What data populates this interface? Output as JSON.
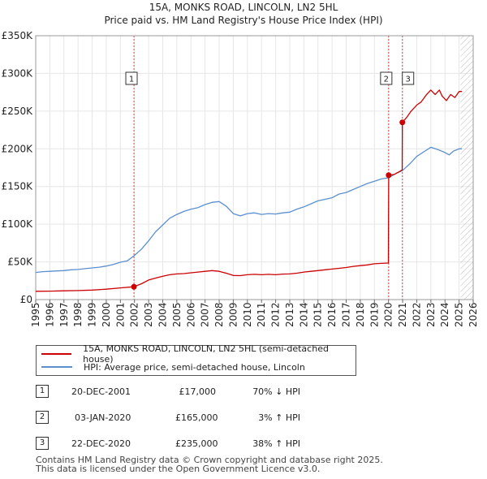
{
  "header": {
    "title": "15A, MONKS ROAD, LINCOLN, LN2 5HL",
    "subtitle": "Price paid vs. HM Land Registry's House Price Index (HPI)"
  },
  "colors": {
    "property": "#cc0000",
    "hpi": "#5b8fd0",
    "grid": "#e6e6e6",
    "hatch": "#aaaaaa"
  },
  "chart_data": {
    "type": "line",
    "title": "15A, MONKS ROAD, LINCOLN, LN2 5HL",
    "xlabel": "",
    "ylabel": "",
    "xlim": [
      1995,
      2026
    ],
    "ylim": [
      0,
      350000
    ],
    "y_ticks": [
      0,
      50000,
      100000,
      150000,
      200000,
      250000,
      300000,
      350000
    ],
    "y_tick_labels": [
      "£0",
      "£50K",
      "£100K",
      "£150K",
      "£200K",
      "£250K",
      "£300K",
      "£350K"
    ],
    "x_ticks": [
      1995,
      1996,
      1997,
      1998,
      1999,
      2000,
      2001,
      2002,
      2003,
      2004,
      2005,
      2006,
      2007,
      2008,
      2009,
      2010,
      2011,
      2012,
      2013,
      2014,
      2015,
      2016,
      2017,
      2018,
      2019,
      2020,
      2021,
      2022,
      2023,
      2024,
      2025,
      2026
    ],
    "x_tick_labels": [
      "1995",
      "1996",
      "1997",
      "1998",
      "1999",
      "2000",
      "2001",
      "2002",
      "2003",
      "2004",
      "2005",
      "2006",
      "2007",
      "2008",
      "2009",
      "2010",
      "2011",
      "2012",
      "2013",
      "2014",
      "2015",
      "2016",
      "2017",
      "2018",
      "2019",
      "2020",
      "2021",
      "2022",
      "2023",
      "2024",
      "2025",
      "2026"
    ],
    "projection_start": 2025.1,
    "series": [
      {
        "name": "15A, MONKS ROAD, LINCOLN, LN2 5HL (semi-detached house)",
        "color": "#cc0000",
        "points": [
          [
            1995.0,
            11000
          ],
          [
            1996.0,
            11200
          ],
          [
            1997.0,
            11600
          ],
          [
            1998.0,
            12000
          ],
          [
            1999.0,
            12600
          ],
          [
            2000.0,
            13800
          ],
          [
            2001.0,
            15500
          ],
          [
            2001.96,
            17000
          ],
          [
            2002.5,
            21000
          ],
          [
            2003.0,
            26000
          ],
          [
            2003.5,
            28500
          ],
          [
            2004.0,
            31000
          ],
          [
            2004.5,
            33000
          ],
          [
            2005.0,
            34000
          ],
          [
            2005.5,
            34500
          ],
          [
            2006.0,
            35500
          ],
          [
            2006.5,
            36500
          ],
          [
            2007.0,
            37500
          ],
          [
            2007.5,
            38500
          ],
          [
            2008.0,
            37500
          ],
          [
            2008.5,
            35000
          ],
          [
            2009.0,
            32000
          ],
          [
            2009.5,
            31800
          ],
          [
            2010.0,
            33000
          ],
          [
            2010.5,
            33500
          ],
          [
            2011.0,
            33000
          ],
          [
            2011.5,
            33500
          ],
          [
            2012.0,
            33000
          ],
          [
            2012.5,
            33800
          ],
          [
            2013.0,
            34000
          ],
          [
            2013.5,
            35000
          ],
          [
            2014.0,
            36500
          ],
          [
            2014.5,
            37500
          ],
          [
            2015.0,
            38500
          ],
          [
            2015.5,
            39500
          ],
          [
            2016.0,
            40500
          ],
          [
            2016.5,
            41500
          ],
          [
            2017.0,
            42500
          ],
          [
            2017.5,
            44000
          ],
          [
            2018.0,
            45000
          ],
          [
            2018.5,
            46000
          ],
          [
            2019.0,
            47500
          ],
          [
            2019.5,
            48000
          ],
          [
            2019.99,
            48500
          ],
          [
            2020.01,
            165000
          ],
          [
            2020.4,
            166000
          ],
          [
            2020.8,
            170000
          ],
          [
            2020.97,
            172000
          ],
          [
            2020.98,
            235000
          ],
          [
            2021.3,
            242000
          ],
          [
            2021.6,
            250000
          ],
          [
            2022.0,
            258000
          ],
          [
            2022.3,
            262000
          ],
          [
            2022.7,
            272000
          ],
          [
            2023.0,
            278000
          ],
          [
            2023.3,
            272000
          ],
          [
            2023.6,
            278000
          ],
          [
            2023.8,
            270000
          ],
          [
            2024.1,
            264000
          ],
          [
            2024.4,
            272000
          ],
          [
            2024.7,
            268000
          ],
          [
            2025.0,
            276000
          ],
          [
            2025.2,
            276000
          ]
        ]
      },
      {
        "name": "HPI: Average price, semi-detached house, Lincoln",
        "color": "#5b8fd0",
        "points": [
          [
            1995.0,
            36000
          ],
          [
            1995.5,
            37000
          ],
          [
            1996.0,
            37500
          ],
          [
            1996.5,
            38000
          ],
          [
            1997.0,
            38500
          ],
          [
            1997.5,
            39500
          ],
          [
            1998.0,
            40000
          ],
          [
            1998.5,
            41000
          ],
          [
            1999.0,
            42000
          ],
          [
            1999.5,
            43000
          ],
          [
            2000.0,
            44500
          ],
          [
            2000.5,
            46500
          ],
          [
            2001.0,
            49500
          ],
          [
            2001.5,
            51500
          ],
          [
            2001.96,
            58000
          ],
          [
            2002.5,
            67000
          ],
          [
            2003.0,
            78000
          ],
          [
            2003.5,
            90000
          ],
          [
            2004.0,
            99000
          ],
          [
            2004.5,
            108000
          ],
          [
            2005.0,
            113000
          ],
          [
            2005.5,
            117000
          ],
          [
            2006.0,
            120000
          ],
          [
            2006.5,
            122000
          ],
          [
            2007.0,
            126000
          ],
          [
            2007.5,
            129000
          ],
          [
            2008.0,
            130000
          ],
          [
            2008.5,
            124000
          ],
          [
            2009.0,
            114000
          ],
          [
            2009.5,
            111000
          ],
          [
            2010.0,
            114000
          ],
          [
            2010.5,
            115000
          ],
          [
            2011.0,
            113000
          ],
          [
            2011.5,
            114000
          ],
          [
            2012.0,
            113500
          ],
          [
            2012.5,
            115000
          ],
          [
            2013.0,
            116000
          ],
          [
            2013.5,
            120000
          ],
          [
            2014.0,
            123000
          ],
          [
            2014.5,
            127000
          ],
          [
            2015.0,
            131000
          ],
          [
            2015.5,
            133000
          ],
          [
            2016.0,
            135000
          ],
          [
            2016.5,
            140000
          ],
          [
            2017.0,
            142000
          ],
          [
            2017.5,
            146000
          ],
          [
            2018.0,
            150000
          ],
          [
            2018.5,
            154000
          ],
          [
            2019.0,
            157000
          ],
          [
            2019.5,
            160000
          ],
          [
            2020.01,
            161500
          ],
          [
            2020.5,
            167000
          ],
          [
            2020.98,
            171000
          ],
          [
            2021.5,
            180000
          ],
          [
            2022.0,
            190000
          ],
          [
            2022.5,
            196000
          ],
          [
            2023.0,
            202000
          ],
          [
            2023.5,
            199000
          ],
          [
            2024.0,
            195000
          ],
          [
            2024.3,
            192000
          ],
          [
            2024.6,
            197000
          ],
          [
            2025.0,
            200000
          ],
          [
            2025.2,
            200000
          ]
        ]
      }
    ],
    "sales": [
      {
        "id": "1",
        "date": 2001.96,
        "price": 17000
      },
      {
        "id": "2",
        "date": 2020.01,
        "price": 165000
      },
      {
        "id": "3",
        "date": 2020.98,
        "price": 235000
      }
    ]
  },
  "legend": {
    "property_label": "15A, MONKS ROAD, LINCOLN, LN2 5HL (semi-detached house)",
    "hpi_label": "HPI: Average price, semi-detached house, Lincoln"
  },
  "transactions": [
    {
      "num": "1",
      "date": "20-DEC-2001",
      "price": "£17,000",
      "hpi": "70% ↓ HPI"
    },
    {
      "num": "2",
      "date": "03-JAN-2020",
      "price": "£165,000",
      "hpi": "3% ↑ HPI"
    },
    {
      "num": "3",
      "date": "22-DEC-2020",
      "price": "£235,000",
      "hpi": "38% ↑ HPI"
    }
  ],
  "footer": {
    "line1": "Contains HM Land Registry data © Crown copyright and database right 2025.",
    "line2": "This data is licensed under the Open Government Licence v3.0."
  }
}
